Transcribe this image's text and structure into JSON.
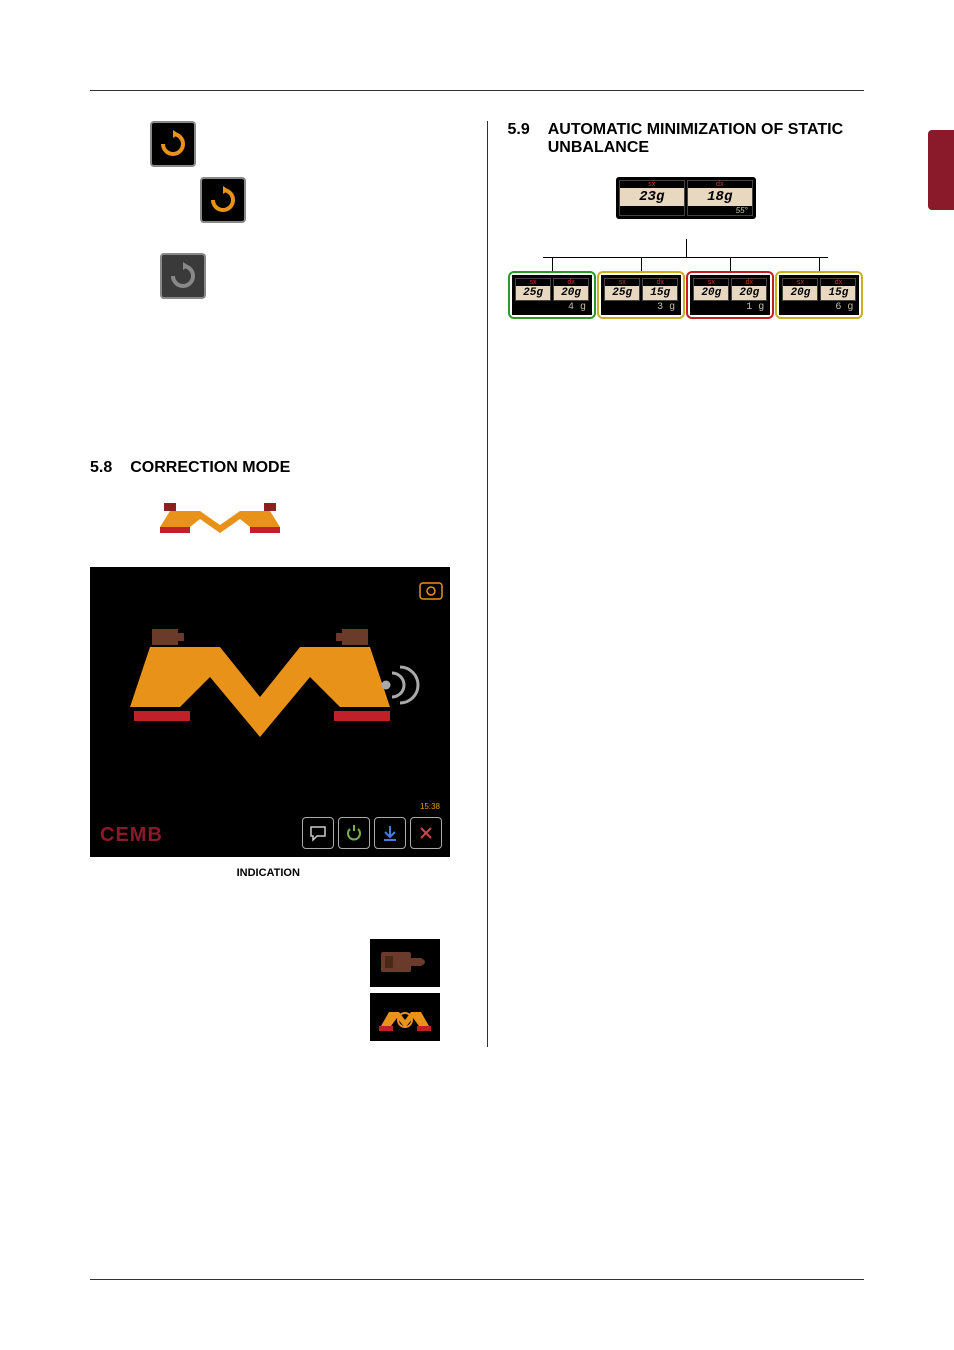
{
  "sections": {
    "s58": {
      "num": "5.8",
      "title": "CORRECTION MODE"
    },
    "s59": {
      "num": "5.9",
      "title": "AUTOMATIC MINIMIZATION OF STATIC UNBALANCE"
    }
  },
  "caption": "INDICATION",
  "brand": "CEMB",
  "time": "15:38",
  "initial_result": {
    "sx_label": "sx",
    "dx_label": "dx",
    "sx_val": "23g",
    "dx_val": "18g",
    "angle": "55°"
  },
  "options": [
    {
      "color": "green",
      "sx_label": "sx",
      "dx_label": "dx",
      "sx": "25g",
      "dx": "20g",
      "static": "4 g"
    },
    {
      "color": "yellow",
      "sx_label": "sx",
      "dx_label": "dx",
      "sx": "25g",
      "dx": "15g",
      "static": "3 g"
    },
    {
      "color": "red",
      "sx_label": "sx",
      "dx_label": "dx",
      "sx": "20g",
      "dx": "20g",
      "static": "1 g"
    },
    {
      "color": "yellow",
      "sx_label": "sx",
      "dx_label": "dx",
      "sx": "20g",
      "dx": "15g",
      "static": "6 g"
    }
  ]
}
